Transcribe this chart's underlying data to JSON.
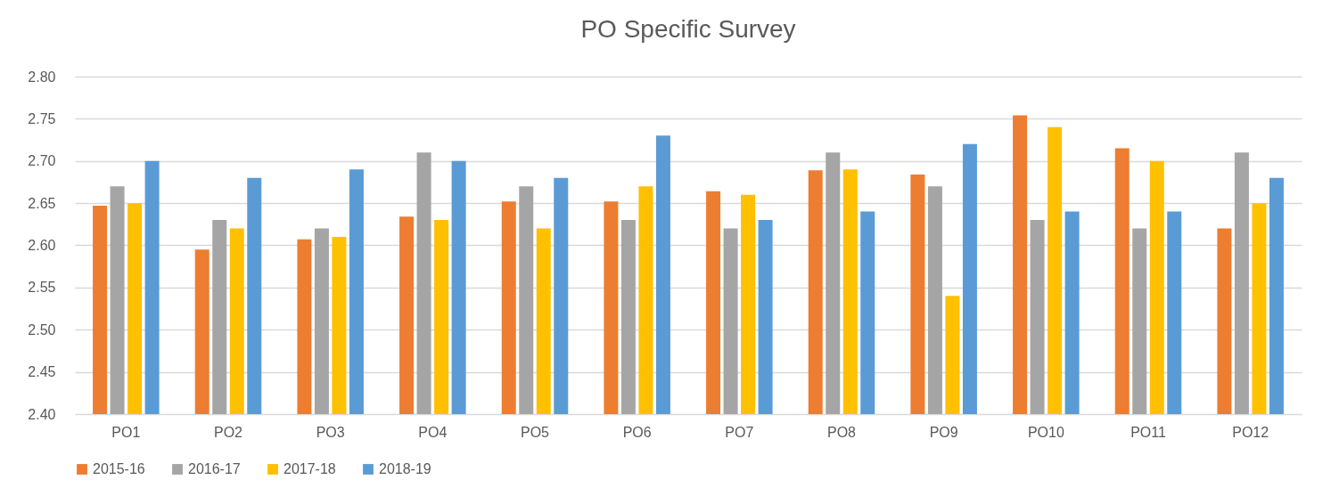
{
  "chart_data": {
    "type": "bar",
    "title": "PO Specific Survey",
    "categories": [
      "PO1",
      "PO2",
      "PO3",
      "PO4",
      "PO5",
      "PO6",
      "PO7",
      "PO8",
      "PO9",
      "PO10",
      "PO11",
      "PO12"
    ],
    "series": [
      {
        "name": "2015-16",
        "color": "#ed7d31",
        "values": [
          2.647,
          2.595,
          2.607,
          2.634,
          2.652,
          2.652,
          2.664,
          2.689,
          2.684,
          2.754,
          2.715,
          2.62
        ]
      },
      {
        "name": "2016-17",
        "color": "#a5a5a5",
        "values": [
          2.67,
          2.63,
          2.62,
          2.71,
          2.67,
          2.63,
          2.62,
          2.71,
          2.67,
          2.63,
          2.62,
          2.71
        ]
      },
      {
        "name": "2017-18",
        "color": "#ffc000",
        "values": [
          2.65,
          2.62,
          2.61,
          2.63,
          2.62,
          2.67,
          2.66,
          2.69,
          2.54,
          2.74,
          2.7,
          2.65
        ]
      },
      {
        "name": "2018-19",
        "color": "#5b9bd5",
        "values": [
          2.7,
          2.68,
          2.69,
          2.7,
          2.68,
          2.73,
          2.63,
          2.64,
          2.72,
          2.64,
          2.64,
          2.68
        ]
      }
    ],
    "ylim": [
      2.4,
      2.8
    ],
    "yticks": [
      {
        "value": 2.4,
        "label": "2.40"
      },
      {
        "value": 2.45,
        "label": "2.45"
      },
      {
        "value": 2.5,
        "label": "2.50"
      },
      {
        "value": 2.55,
        "label": "2.55"
      },
      {
        "value": 2.6,
        "label": "2.60"
      },
      {
        "value": 2.65,
        "label": "2.65"
      },
      {
        "value": 2.7,
        "label": "2.70"
      },
      {
        "value": 2.75,
        "label": "2.75"
      },
      {
        "value": 2.8,
        "label": "2.80"
      }
    ],
    "grid": "y",
    "legend": "bottom"
  }
}
